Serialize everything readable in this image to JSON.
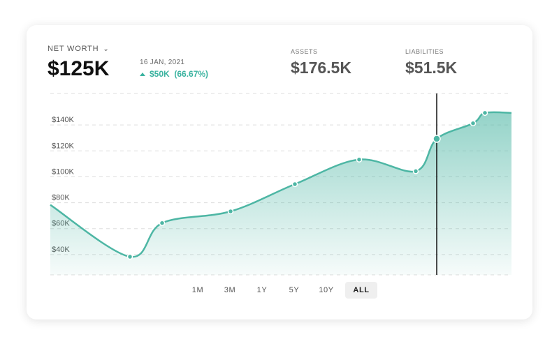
{
  "header": {
    "net_worth_label": "NET WORTH",
    "net_worth_value": "$125K",
    "date": "16 JAN, 2021",
    "change": "$50K  (66.67%)"
  },
  "stats": {
    "assets_label": "ASSETS",
    "assets_value": "$176.5K",
    "liabilities_label": "LIABILITIES",
    "liabilities_value": "$51.5K"
  },
  "ranges": [
    "1M",
    "3M",
    "1Y",
    "5Y",
    "10Y",
    "ALL"
  ],
  "active_range": "ALL",
  "colors": {
    "accent": "#4db6a4",
    "fill": "#bfe5dd",
    "text": "#111111"
  },
  "icons": {
    "dropdown": "chevron-down-icon",
    "change": "triangle-up-icon"
  },
  "chart_data": {
    "type": "area",
    "title": "",
    "xlabel": "",
    "ylabel": "",
    "y_tick_labels": [
      "$40K",
      "$60K",
      "$80K",
      "$100K",
      "$120K",
      "$140K"
    ],
    "y_ticks": [
      40,
      60,
      80,
      100,
      120,
      140
    ],
    "ylim": [
      20,
      160
    ],
    "x": [
      0,
      1,
      2,
      3,
      4,
      5,
      6,
      7,
      8,
      9,
      10
    ],
    "series": [
      {
        "values": [
          74,
          34,
          60,
          69,
          90,
          109,
          100,
          125,
          137,
          145,
          145
        ]
      }
    ],
    "highlighted_index": 7,
    "grid": true
  }
}
